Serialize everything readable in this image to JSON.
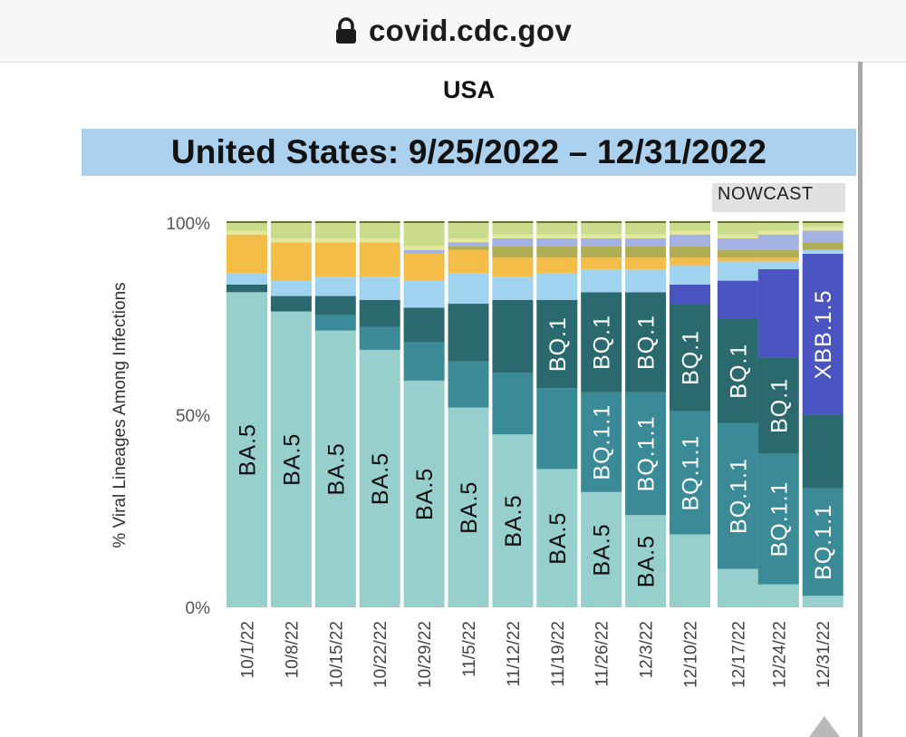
{
  "browser": {
    "url": "covid.cdc.gov",
    "lock_icon": "lock-icon"
  },
  "page": {
    "title": "USA",
    "banner": "United States: 9/25/2022 – 12/31/2022",
    "nowcast_label": "NOWCAST"
  },
  "colors": {
    "BA.5": "#96cfcb",
    "BQ.1.1": "#3a8a98",
    "BQ.1": "#2a6a6e",
    "XBB.1.5": "#4b55c2",
    "light_blue": "#9fd3ef",
    "orange": "#f4bd47",
    "olive": "#b0ad54",
    "periwinkle": "#a3b1e3",
    "lime": "#e5e89a",
    "top_mix": "#c8dc8c"
  },
  "chart_data": {
    "type": "bar",
    "stacked": true,
    "ylabel": "% Viral Lineages Among Infections",
    "ylim": [
      0,
      100
    ],
    "yticks": [
      "0%",
      "50%",
      "100%"
    ],
    "nowcast_from": "12/17/22",
    "categories": [
      "10/1/22",
      "10/8/22",
      "10/15/22",
      "10/22/22",
      "10/29/22",
      "11/5/22",
      "11/12/22",
      "11/19/22",
      "11/26/22",
      "12/3/22",
      "12/10/22",
      "12/17/22",
      "12/24/22",
      "12/31/22"
    ],
    "series": [
      {
        "name": "BA.5",
        "color": "#96cfcb",
        "values": [
          82,
          77,
          72,
          67,
          59,
          52,
          45,
          36,
          30,
          24,
          19,
          10,
          6,
          3
        ]
      },
      {
        "name": "BQ.1.1",
        "color": "#3a8a98",
        "values": [
          0,
          0,
          4,
          6,
          10,
          12,
          16,
          21,
          26,
          32,
          32,
          38,
          34,
          28
        ]
      },
      {
        "name": "BQ.1",
        "color": "#2a6a6e",
        "values": [
          2,
          4,
          5,
          7,
          9,
          15,
          19,
          23,
          26,
          26,
          28,
          27,
          25,
          19
        ]
      },
      {
        "name": "XBB.1.5",
        "color": "#4b55c2",
        "values": [
          0,
          0,
          0,
          0,
          0,
          0,
          0,
          0,
          0,
          0,
          5,
          10,
          23,
          42
        ]
      },
      {
        "name": "Other (light blue)",
        "color": "#9fd3ef",
        "values": [
          3,
          4,
          5,
          6,
          7,
          8,
          6,
          7,
          6,
          6,
          5,
          5,
          2,
          1
        ]
      },
      {
        "name": "Other (orange)",
        "color": "#f4bd47",
        "values": [
          10,
          10,
          9,
          9,
          7,
          6,
          5,
          4,
          3,
          3,
          2,
          1,
          1,
          0
        ]
      },
      {
        "name": "Other (olive)",
        "color": "#b0ad54",
        "values": [
          0,
          0,
          0,
          0,
          0,
          1,
          3,
          3,
          3,
          3,
          3,
          2,
          2,
          2
        ]
      },
      {
        "name": "Other (periwinkle)",
        "color": "#a3b1e3",
        "values": [
          0,
          0,
          0,
          0,
          1,
          1,
          2,
          2,
          2,
          2,
          3,
          3,
          4,
          3
        ]
      },
      {
        "name": "Other (lime)",
        "color": "#e5e89a",
        "values": [
          1,
          1,
          1,
          1,
          1,
          1,
          1,
          1,
          1,
          1,
          1,
          1,
          1,
          1
        ]
      },
      {
        "name": "Other (mixed)",
        "color": "#c8dc8c",
        "values": [
          2,
          4,
          4,
          4,
          6,
          4,
          3,
          3,
          3,
          3,
          2,
          3,
          2,
          1
        ]
      }
    ],
    "labels": [
      {
        "series": "BA.5",
        "bars": [
          0,
          1,
          2,
          3,
          4,
          5,
          6,
          7,
          8,
          9
        ],
        "text": "BA.5",
        "style": "dark"
      },
      {
        "series": "BQ.1",
        "bars": [
          7,
          8,
          9,
          10,
          11,
          12
        ],
        "text": "BQ.1",
        "style": "light"
      },
      {
        "series": "BQ.1.1",
        "bars": [
          8,
          9,
          10,
          11,
          12,
          13
        ],
        "text": "BQ.1.1",
        "style": "light"
      },
      {
        "series": "XBB.1.5",
        "bars": [
          13
        ],
        "text": "XBB.1.5",
        "style": "light"
      }
    ]
  }
}
